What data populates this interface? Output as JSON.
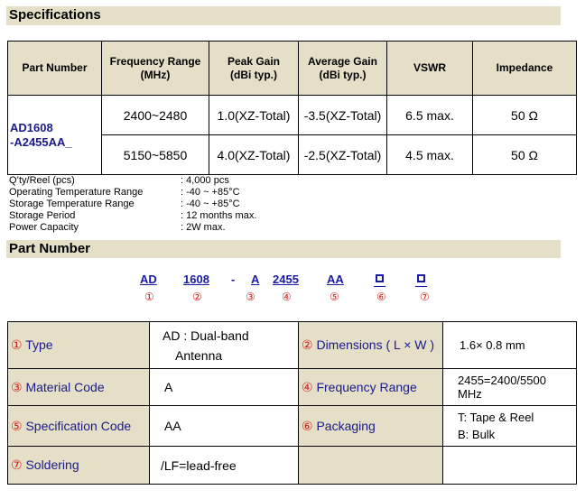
{
  "specifications": {
    "title": "Specifications",
    "headers": [
      "Part Number",
      "Frequency Range (MHz)",
      "Peak Gain (dBi typ.)",
      "Average Gain (dBi typ.)",
      "VSWR",
      "Impedance"
    ],
    "header_lines": [
      [
        "Part Number"
      ],
      [
        "Frequency Range",
        "(MHz)"
      ],
      [
        "Peak Gain",
        "(dBi typ.)"
      ],
      [
        "Average Gain",
        "(dBi typ.)"
      ],
      [
        "VSWR"
      ],
      [
        "Impedance"
      ]
    ],
    "part_number_lines": [
      "AD1608",
      "-A2455AA_"
    ],
    "rows": [
      {
        "freq": "2400~2480",
        "peak": "1.0(XZ-Total)",
        "avg": "-3.5(XZ-Total)",
        "vswr": "6.5 max.",
        "imp": "50 Ω"
      },
      {
        "freq": "5150~5850",
        "peak": "4.0(XZ-Total)",
        "avg": "-2.5(XZ-Total)",
        "vswr": "4.5 max.",
        "imp": "50 Ω"
      }
    ]
  },
  "details": [
    {
      "label": "Q’ty/Reel (pcs)",
      "value": ": 4,000 pcs"
    },
    {
      "label": "Operating Temperature Range",
      "value": ": -40 ~ +85°C"
    },
    {
      "label": "Storage Temperature Range",
      "value": ": -40 ~ +85°C"
    },
    {
      "label": "Storage Period",
      "value": ": 12 months max."
    },
    {
      "label": "Power Capacity",
      "value": ": 2W max."
    }
  ],
  "part_number": {
    "title": "Part Number",
    "code": {
      "ad": "AD",
      "size": "1608",
      "dash": "-",
      "a": "A",
      "freq": "2455",
      "spec": "AA"
    },
    "circles": [
      "①",
      "②",
      "③",
      "④",
      "⑤",
      "⑥",
      "⑦"
    ],
    "table": [
      {
        "k1c": "①",
        "k1": " Type",
        "v1a": "AD : Dual-band",
        "v1b": "Antenna",
        "k2c": "②",
        "k2": " Dimensions ( L × W )",
        "v2a": "1.6× 0.8 mm",
        "v2b": ""
      },
      {
        "k1c": "③",
        "k1": " Material Code",
        "v1a": "A",
        "v1b": "",
        "k2c": "④",
        "k2": " Frequency Range",
        "v2a": "2455=2400/5500",
        "v2b": "MHz"
      },
      {
        "k1c": "⑤",
        "k1": " Specification Code",
        "v1a": "AA",
        "v1b": "",
        "k2c": "⑥",
        "k2": " Packaging",
        "v2a": "T: Tape & Reel",
        "v2b": "B: Bulk"
      },
      {
        "k1c": "⑦",
        "k1": " Soldering",
        "v1a": "/LF=lead-free",
        "v1b": "",
        "k2c": "",
        "k2": "",
        "v2a": "",
        "v2b": ""
      }
    ]
  }
}
